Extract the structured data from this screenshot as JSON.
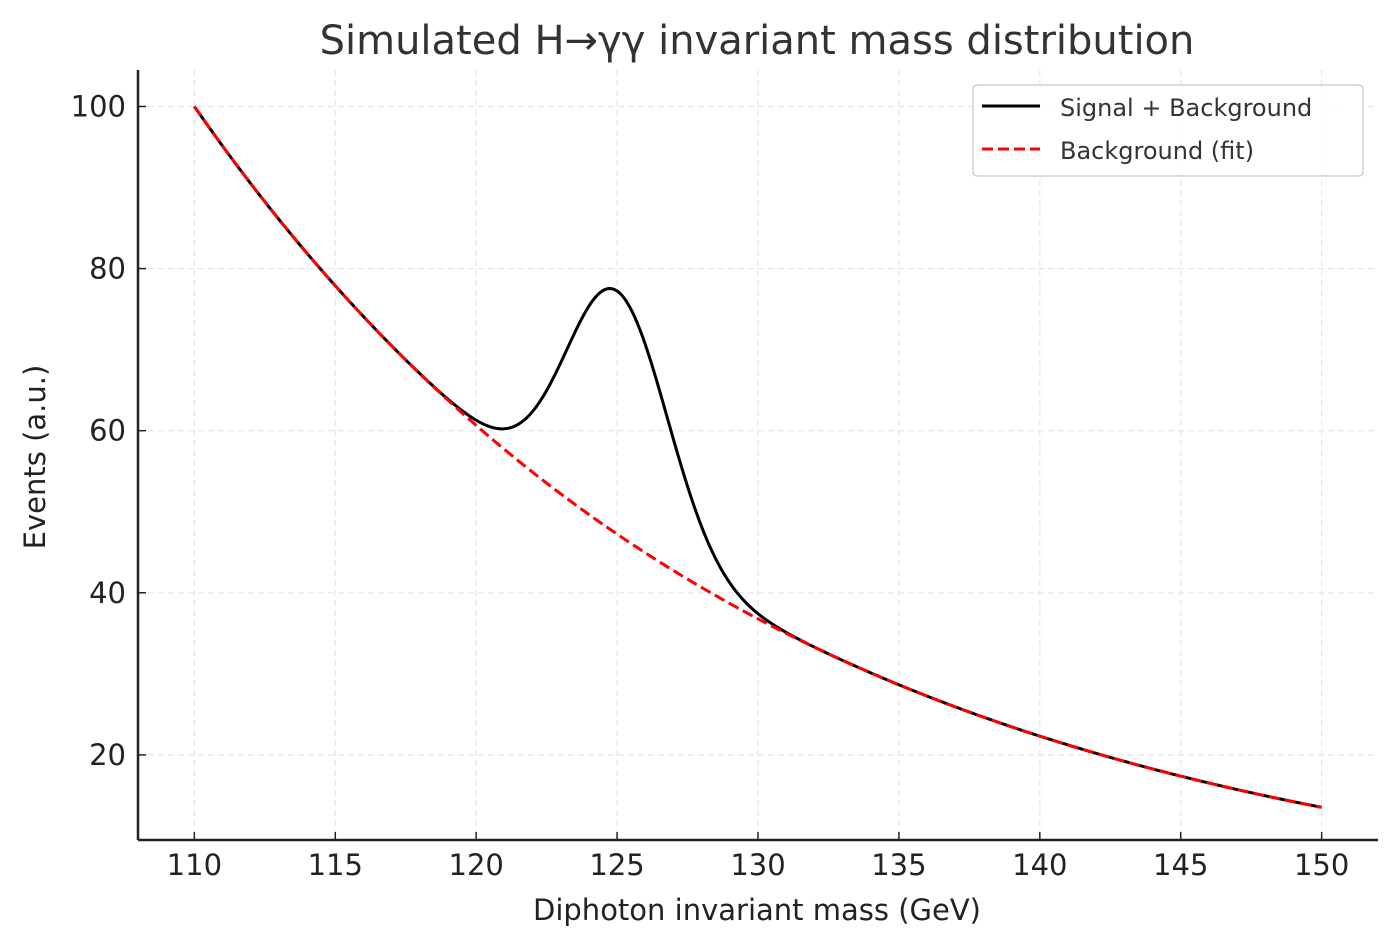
{
  "chart_data": {
    "type": "line",
    "title": "Simulated H→γγ invariant mass distribution",
    "xlabel": "Diphoton invariant mass (GeV)",
    "ylabel": "Events (a.u.)",
    "xlim": [
      108,
      152
    ],
    "ylim": [
      9.5,
      104.5
    ],
    "xticks": [
      110,
      115,
      120,
      125,
      130,
      135,
      140,
      145,
      150
    ],
    "yticks": [
      20,
      40,
      60,
      80,
      100
    ],
    "xtick_labels": [
      "110",
      "115",
      "120",
      "125",
      "130",
      "135",
      "140",
      "145",
      "150"
    ],
    "ytick_labels": [
      "20",
      "40",
      "60",
      "80",
      "100"
    ],
    "grid": true,
    "legend_position": "top-right",
    "model": {
      "x_range": [
        110,
        150
      ],
      "background": {
        "form": "exponential",
        "amplitude": 100,
        "x0": 110,
        "decay": 0.05
      },
      "signal": {
        "form": "gaussian",
        "amplitude": 30,
        "mean": 125,
        "sigma": 1.8
      }
    },
    "series": [
      {
        "name": "Signal + Background",
        "color": "#000000",
        "style": "solid",
        "x": [
          110,
          112,
          114,
          116,
          118,
          120,
          121,
          122,
          123,
          124,
          124.8,
          125,
          126,
          127,
          128,
          129,
          130,
          132,
          135,
          140,
          145,
          150
        ],
        "y": [
          100,
          90.5,
          81.9,
          74.1,
          67.0,
          60.9,
          60.2,
          62.1,
          68.8,
          76.3,
          77.5,
          77.2,
          70.0,
          57.5,
          45.8,
          39.5,
          37.4,
          33.3,
          28.7,
          22.3,
          17.4,
          13.5
        ]
      },
      {
        "name": "Background (fit)",
        "color": "#ff0000",
        "style": "dashed",
        "x": [
          110,
          112,
          114,
          116,
          118,
          120,
          122,
          124,
          125,
          126,
          128,
          130,
          132,
          135,
          140,
          145,
          150
        ],
        "y": [
          100,
          90.5,
          81.9,
          74.1,
          67.0,
          60.7,
          54.9,
          49.7,
          47.2,
          44.9,
          40.7,
          36.8,
          33.3,
          28.7,
          22.3,
          17.4,
          13.5
        ]
      }
    ]
  }
}
